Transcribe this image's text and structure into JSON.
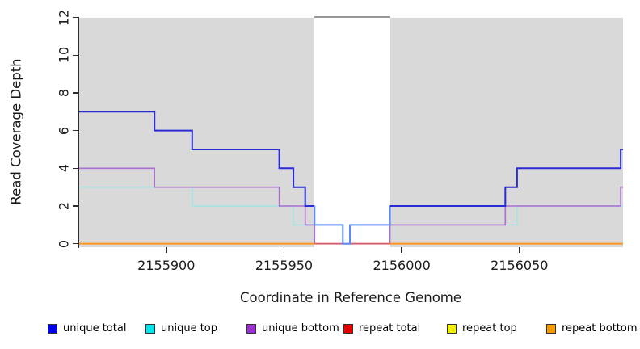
{
  "chart_data": {
    "type": "step-line",
    "title": "",
    "xlabel": "Coordinate in Reference Genome",
    "ylabel": "Read Coverage Depth",
    "xlim": [
      2155863,
      2156094
    ],
    "ylim": [
      0,
      12
    ],
    "x_ticks": [
      "2155900",
      "2155950",
      "2156000",
      "2156050"
    ],
    "y_ticks": [
      "0",
      "2",
      "4",
      "6",
      "8",
      "10",
      "12"
    ],
    "grid": false,
    "plot_background": "#d9d9d9",
    "highlight_region": {
      "x_start": 2155963,
      "x_end": 2155995,
      "fill": "#ffffff",
      "top_line_color": "#999999",
      "meaning": "repeat region band drawn white over gray background"
    },
    "series": [
      {
        "name": "unique total",
        "legend_color": "#0000ee",
        "steps": [
          [
            2155863,
            7
          ],
          [
            2155895,
            6
          ],
          [
            2155911,
            5
          ],
          [
            2155948,
            4
          ],
          [
            2155954,
            3
          ],
          [
            2155959,
            2
          ],
          [
            2155963,
            1
          ],
          [
            2155975,
            0
          ],
          [
            2155978,
            1
          ],
          [
            2155995,
            2
          ],
          [
            2156044,
            3
          ],
          [
            2156049,
            4
          ],
          [
            2156093,
            5
          ]
        ],
        "x_end": 2156094
      },
      {
        "name": "unique top",
        "legend_color": "#00e5ee",
        "steps": [
          [
            2155863,
            3
          ],
          [
            2155911,
            2
          ],
          [
            2155954,
            1
          ],
          [
            2155963,
            0
          ],
          [
            2155995,
            1
          ],
          [
            2156049,
            2
          ]
        ],
        "x_end": 2156094
      },
      {
        "name": "unique bottom",
        "legend_color": "#9b30d0",
        "steps": [
          [
            2155863,
            4
          ],
          [
            2155895,
            3
          ],
          [
            2155948,
            2
          ],
          [
            2155959,
            1
          ],
          [
            2155963,
            0
          ],
          [
            2155995,
            1
          ],
          [
            2156044,
            2
          ],
          [
            2156093,
            3
          ]
        ],
        "x_end": 2156094
      },
      {
        "name": "repeat total",
        "legend_color": "#e60000",
        "steps": [
          [
            2155863,
            0
          ]
        ],
        "x_end": 2156094
      },
      {
        "name": "repeat top",
        "legend_color": "#f0f000",
        "steps": [
          [
            2155863,
            0
          ]
        ],
        "x_end": 2156094
      },
      {
        "name": "repeat bottom",
        "legend_color": "#f59b00",
        "steps": [
          [
            2155863,
            0
          ]
        ],
        "x_end": 2156094
      }
    ],
    "render_polylines": [
      {
        "name": "unique-top-line",
        "color": "#9fe6e3",
        "width": 1.6,
        "points": [
          [
            2155863,
            3
          ],
          [
            2155911,
            3
          ],
          [
            2155911,
            2
          ],
          [
            2155954,
            2
          ],
          [
            2155954,
            1
          ],
          [
            2155963,
            1
          ],
          [
            2155963,
            0
          ],
          [
            2155995,
            0
          ],
          [
            2155995,
            1
          ],
          [
            2156049,
            1
          ],
          [
            2156049,
            2
          ],
          [
            2156094,
            2
          ]
        ]
      },
      {
        "name": "unique-bottom-line",
        "color": "#ab6fd2",
        "width": 1.6,
        "points": [
          [
            2155863,
            4
          ],
          [
            2155895,
            4
          ],
          [
            2155895,
            3
          ],
          [
            2155948,
            3
          ],
          [
            2155948,
            2
          ],
          [
            2155959,
            2
          ],
          [
            2155959,
            1
          ],
          [
            2155963,
            1
          ],
          [
            2155963,
            0
          ],
          [
            2155995,
            0
          ],
          [
            2155995,
            1
          ],
          [
            2156044,
            1
          ],
          [
            2156044,
            2
          ],
          [
            2156093,
            2
          ],
          [
            2156093,
            3
          ],
          [
            2156094,
            3
          ]
        ]
      },
      {
        "name": "repeat-zero-line",
        "color": "#ff9015",
        "width": 1.8,
        "points": [
          [
            2155863,
            0
          ],
          [
            2156094,
            0
          ]
        ]
      },
      {
        "name": "band-zero-line",
        "color": "#d45c82",
        "width": 1.6,
        "points": [
          [
            2155963,
            0
          ],
          [
            2155995,
            0
          ]
        ]
      },
      {
        "name": "unique-total-left",
        "color": "#2b2bd6",
        "width": 2,
        "points": [
          [
            2155863,
            7
          ],
          [
            2155895,
            7
          ],
          [
            2155895,
            6
          ],
          [
            2155911,
            6
          ],
          [
            2155911,
            5
          ],
          [
            2155948,
            5
          ],
          [
            2155948,
            4
          ],
          [
            2155954,
            4
          ],
          [
            2155954,
            3
          ],
          [
            2155959,
            3
          ],
          [
            2155959,
            2
          ],
          [
            2155963,
            2
          ]
        ]
      },
      {
        "name": "unique-total-band",
        "color": "#5d8cf8",
        "width": 2,
        "points": [
          [
            2155963,
            2
          ],
          [
            2155963,
            1
          ],
          [
            2155975,
            1
          ],
          [
            2155975,
            0
          ],
          [
            2155978,
            0
          ],
          [
            2155978,
            1
          ],
          [
            2155995,
            1
          ],
          [
            2155995,
            2
          ]
        ]
      },
      {
        "name": "unique-total-right",
        "color": "#2b2bd6",
        "width": 2,
        "points": [
          [
            2155995,
            2
          ],
          [
            2156044,
            2
          ],
          [
            2156044,
            3
          ],
          [
            2156049,
            3
          ],
          [
            2156049,
            4
          ],
          [
            2156093,
            4
          ],
          [
            2156093,
            5
          ],
          [
            2156094,
            5
          ]
        ]
      }
    ],
    "legend_position": "bottom"
  },
  "legend": {
    "items": [
      {
        "label": "unique total",
        "color": "#0000ee"
      },
      {
        "label": "unique top",
        "color": "#00e5ee"
      },
      {
        "label": "unique bottom",
        "color": "#9b30d0"
      },
      {
        "label": "repeat total",
        "color": "#e60000"
      },
      {
        "label": "repeat top",
        "color": "#f0f000"
      },
      {
        "label": "repeat bottom",
        "color": "#f59b00"
      }
    ]
  }
}
